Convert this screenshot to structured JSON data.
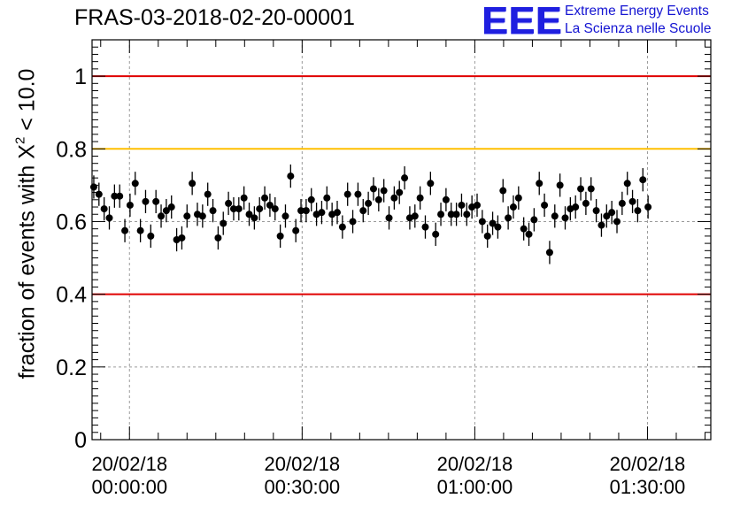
{
  "title": "FRAS-03-2018-02-20-00001",
  "logo": {
    "mark": "EEE",
    "line1": "Extreme Energy Events",
    "line2": "La Scienza nelle Scuole",
    "color": "#1414d2"
  },
  "chart_data": {
    "type": "scatter",
    "title": "FRAS-03-2018-02-20-00001",
    "xlabel": "",
    "ylabel": {
      "prefix": "fraction of events with ",
      "symbol": "X",
      "sup": "2",
      "suffix": " < 10.0"
    },
    "x_unit": "minutes after 2018-02-20 00:00:00",
    "xlim": [
      -6.5,
      101
    ],
    "ylim": [
      0,
      1.1
    ],
    "xticks": [
      {
        "value": 0,
        "date": "20/02/18",
        "time": "00:00:00"
      },
      {
        "value": 30,
        "date": "20/02/18",
        "time": "00:30:00"
      },
      {
        "value": 60,
        "date": "20/02/18",
        "time": "01:00:00"
      },
      {
        "value": 90,
        "date": "20/02/18",
        "time": "01:30:00"
      }
    ],
    "yticks": [
      "0",
      "0.2",
      "0.4",
      "0.6",
      "0.8",
      "1"
    ],
    "grid": true,
    "reference_lines": [
      {
        "y": 1.0,
        "color": "#e00000"
      },
      {
        "y": 0.8,
        "color": "#ffbf00"
      },
      {
        "y": 0.4,
        "color": "#e00000"
      }
    ],
    "error": 0.032,
    "series": [
      {
        "x_start": -6.2,
        "x_step": 0.9,
        "values": [
          0.695,
          0.675,
          0.635,
          0.61,
          0.67,
          0.67,
          0.575,
          0.645,
          0.705,
          0.575,
          0.655,
          0.56,
          0.655,
          0.615,
          0.63,
          0.64,
          0.55,
          0.555,
          0.615,
          0.705,
          0.62,
          0.615,
          0.675,
          0.63,
          0.555,
          0.595,
          0.65,
          0.635,
          0.635,
          0.665,
          0.62,
          0.61,
          0.635,
          0.665,
          0.645,
          0.635,
          0.56,
          0.615,
          0.725,
          0.575,
          0.63,
          0.63,
          0.66,
          0.62,
          0.625,
          0.665,
          0.62,
          0.625,
          0.585,
          0.675,
          0.6,
          0.675,
          0.63,
          0.65,
          0.69,
          0.66,
          0.685,
          0.61,
          0.665,
          0.68,
          0.72,
          0.61,
          0.615,
          0.665,
          0.585,
          0.705,
          0.565,
          0.62,
          0.66,
          0.62,
          0.62,
          0.645,
          0.62,
          0.64,
          0.645,
          0.6,
          0.56,
          0.595,
          0.585,
          0.685,
          0.61,
          0.64,
          0.665,
          0.58,
          0.565,
          0.605,
          0.705,
          0.645,
          0.515,
          0.615,
          0.7,
          0.61,
          0.635,
          0.64,
          0.69,
          0.65,
          0.69,
          0.63,
          0.59,
          0.615,
          0.625,
          0.6,
          0.65,
          0.705,
          0.655,
          0.63,
          0.715,
          0.64
        ]
      }
    ]
  }
}
